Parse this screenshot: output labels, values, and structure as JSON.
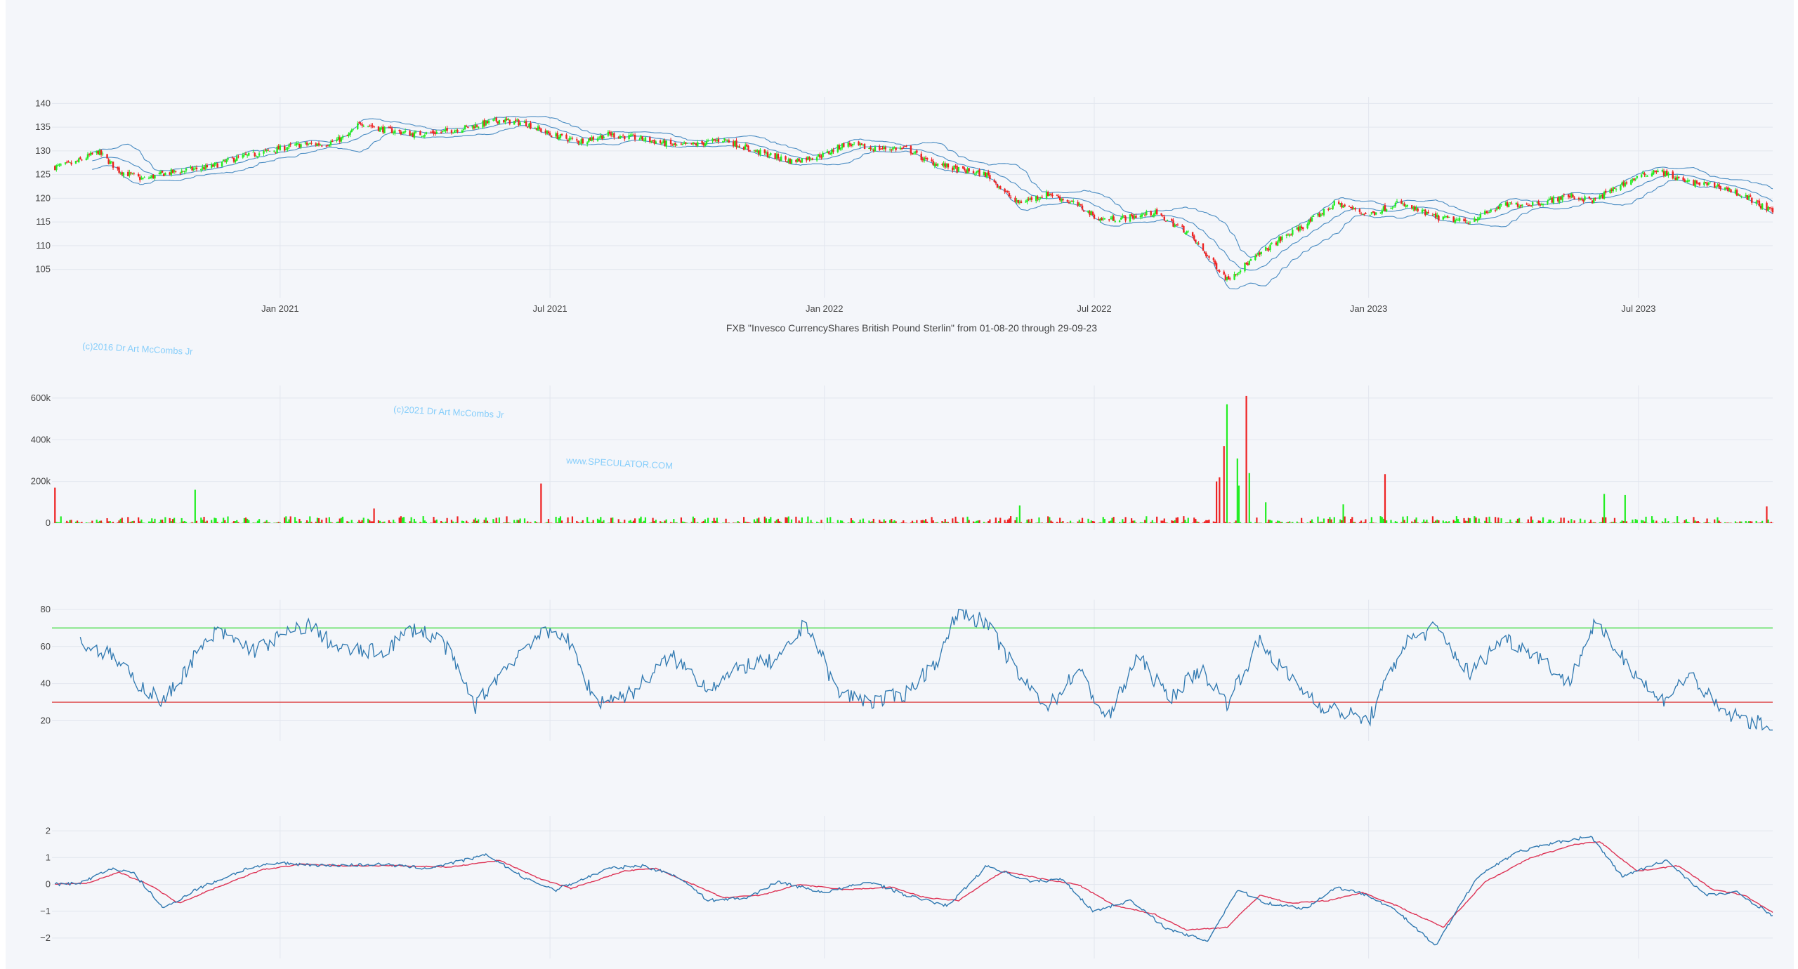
{
  "colors": {
    "page_bg": "#ffffff",
    "plot_bg": "#f4f6fa",
    "grid": "#e2e6ee",
    "tick_text": "#444444",
    "up": "#22ee22",
    "down": "#ee2222",
    "band": "#4a8cc2",
    "rsi_line": "#2f78b0",
    "rsi_upper": "#44dd44",
    "rsi_lower": "#dd4444",
    "osc_fast": "#2f78b0",
    "osc_slow": "#dd3355",
    "watermark": "#87cefa"
  },
  "title": "FXB \"Invesco CurrencyShares British Pound Sterlin\" from 01-08-20 through 29-09-23",
  "watermarks": [
    "(c)2016 Dr Art McCombs Jr",
    "(c)2021 Dr Art McCombs Jr",
    "www.SPECULATOR.COM"
  ],
  "chart_data": [
    {
      "type": "candlestick",
      "name": "price",
      "x_range": [
        "2020-08-01",
        "2023-09-29"
      ],
      "x_ticks": [
        {
          "date": "2021-01-01",
          "label": "Jan 2021"
        },
        {
          "date": "2021-07-01",
          "label": "Jul 2021"
        },
        {
          "date": "2022-01-01",
          "label": "Jan 2022"
        },
        {
          "date": "2022-07-01",
          "label": "Jul 2022"
        },
        {
          "date": "2023-01-01",
          "label": "Jan 2023"
        },
        {
          "date": "2023-07-01",
          "label": "Jul 2023"
        }
      ],
      "y_ticks": [
        105,
        110,
        115,
        120,
        125,
        130,
        135,
        140
      ],
      "ylim": [
        100.5,
        140.5
      ],
      "close_path": [
        [
          "2020-08-01",
          126.5
        ],
        [
          "2020-08-15",
          127.3
        ],
        [
          "2020-09-01",
          129.8
        ],
        [
          "2020-09-15",
          125.8
        ],
        [
          "2020-10-01",
          124.0
        ],
        [
          "2020-10-15",
          125.2
        ],
        [
          "2020-11-01",
          126.0
        ],
        [
          "2020-11-15",
          126.6
        ],
        [
          "2020-12-01",
          128.3
        ],
        [
          "2020-12-15",
          129.3
        ],
        [
          "2021-01-01",
          130.5
        ],
        [
          "2021-01-15",
          131.3
        ],
        [
          "2021-02-01",
          131.5
        ],
        [
          "2021-02-15",
          133.0
        ],
        [
          "2021-02-24",
          136.0
        ],
        [
          "2021-03-10",
          134.6
        ],
        [
          "2021-04-01",
          133.5
        ],
        [
          "2021-04-20",
          134.0
        ],
        [
          "2021-05-10",
          135.2
        ],
        [
          "2021-05-28",
          136.5
        ],
        [
          "2021-06-15",
          135.8
        ],
        [
          "2021-07-01",
          133.5
        ],
        [
          "2021-07-20",
          132.0
        ],
        [
          "2021-08-10",
          133.5
        ],
        [
          "2021-09-01",
          132.5
        ],
        [
          "2021-09-25",
          131.0
        ],
        [
          "2021-10-10",
          131.5
        ],
        [
          "2021-10-25",
          132.5
        ],
        [
          "2021-11-15",
          130.0
        ],
        [
          "2021-12-10",
          127.8
        ],
        [
          "2022-01-01",
          129.2
        ],
        [
          "2022-01-15",
          131.5
        ],
        [
          "2022-02-01",
          130.5
        ],
        [
          "2022-02-25",
          130.5
        ],
        [
          "2022-03-10",
          128.0
        ],
        [
          "2022-04-01",
          126.0
        ],
        [
          "2022-04-20",
          125.0
        ],
        [
          "2022-05-10",
          119.0
        ],
        [
          "2022-06-01",
          121.0
        ],
        [
          "2022-06-20",
          118.5
        ],
        [
          "2022-07-05",
          115.5
        ],
        [
          "2022-07-25",
          116.0
        ],
        [
          "2022-08-10",
          117.0
        ],
        [
          "2022-09-01",
          113.0
        ],
        [
          "2022-09-28",
          103.0
        ],
        [
          "2022-10-15",
          107.0
        ],
        [
          "2022-11-01",
          111.0
        ],
        [
          "2022-11-20",
          114.5
        ],
        [
          "2022-12-10",
          119.0
        ],
        [
          "2023-01-01",
          116.5
        ],
        [
          "2023-01-20",
          119.0
        ],
        [
          "2023-02-15",
          116.0
        ],
        [
          "2023-03-08",
          115.0
        ],
        [
          "2023-04-01",
          118.5
        ],
        [
          "2023-04-25",
          119.0
        ],
        [
          "2023-05-15",
          120.5
        ],
        [
          "2023-06-01",
          119.5
        ],
        [
          "2023-06-20",
          123.0
        ],
        [
          "2023-07-13",
          126.0
        ],
        [
          "2023-08-01",
          123.5
        ],
        [
          "2023-08-25",
          122.5
        ],
        [
          "2023-09-10",
          120.5
        ],
        [
          "2023-09-29",
          117.0
        ]
      ]
    },
    {
      "type": "bar",
      "name": "volume",
      "y_ticks": [
        0,
        200000,
        400000,
        600000
      ],
      "y_tick_labels": [
        "0",
        "200k",
        "400k",
        "600k"
      ],
      "ylim": [
        0,
        640000
      ],
      "spikes": [
        [
          "2020-08-03",
          170000
        ],
        [
          "2020-11-05",
          160000
        ],
        [
          "2020-11-22",
          140000
        ],
        [
          "2021-03-05",
          70000
        ],
        [
          "2021-06-25",
          190000
        ],
        [
          "2021-09-08",
          25000
        ],
        [
          "2022-05-12",
          85000
        ],
        [
          "2022-09-21",
          200000
        ],
        [
          "2022-09-23",
          220000
        ],
        [
          "2022-09-26",
          370000
        ],
        [
          "2022-09-28",
          570000
        ],
        [
          "2022-10-05",
          310000
        ],
        [
          "2022-10-06",
          180000
        ],
        [
          "2022-10-11",
          610000
        ],
        [
          "2022-10-13",
          240000
        ],
        [
          "2022-10-24",
          100000
        ],
        [
          "2022-12-15",
          90000
        ],
        [
          "2023-01-12",
          235000
        ],
        [
          "2023-06-08",
          140000
        ],
        [
          "2023-06-22",
          135000
        ],
        [
          "2023-09-25",
          80000
        ]
      ]
    },
    {
      "type": "line",
      "name": "rsi",
      "y_ticks": [
        20,
        40,
        60,
        80
      ],
      "ylim": [
        13,
        83
      ],
      "upper_level": 70,
      "lower_level": 30,
      "path": [
        [
          "2020-08-20",
          62
        ],
        [
          "2020-09-10",
          55
        ],
        [
          "2020-09-25",
          42
        ],
        [
          "2020-10-15",
          30
        ],
        [
          "2020-11-05",
          55
        ],
        [
          "2020-11-20",
          68
        ],
        [
          "2020-12-15",
          58
        ],
        [
          "2021-01-01",
          65
        ],
        [
          "2021-01-20",
          72
        ],
        [
          "2021-02-10",
          58
        ],
        [
          "2021-03-10",
          57
        ],
        [
          "2021-04-01",
          70
        ],
        [
          "2021-04-20",
          63
        ],
        [
          "2021-05-12",
          28
        ],
        [
          "2021-05-28",
          45
        ],
        [
          "2021-06-20",
          65
        ],
        [
          "2021-07-10",
          68
        ],
        [
          "2021-08-01",
          30
        ],
        [
          "2021-08-25",
          35
        ],
        [
          "2021-09-20",
          55
        ],
        [
          "2021-10-15",
          38
        ],
        [
          "2021-11-10",
          50
        ],
        [
          "2021-12-01",
          52
        ],
        [
          "2021-12-20",
          73
        ],
        [
          "2022-01-10",
          35
        ],
        [
          "2022-02-05",
          30
        ],
        [
          "2022-02-25",
          35
        ],
        [
          "2022-03-20",
          55
        ],
        [
          "2022-04-01",
          80
        ],
        [
          "2022-04-20",
          72
        ],
        [
          "2022-05-15",
          40
        ],
        [
          "2022-06-01",
          28
        ],
        [
          "2022-06-20",
          48
        ],
        [
          "2022-07-10",
          20
        ],
        [
          "2022-07-30",
          55
        ],
        [
          "2022-08-20",
          32
        ],
        [
          "2022-09-10",
          48
        ],
        [
          "2022-09-28",
          30
        ],
        [
          "2022-10-20",
          63
        ],
        [
          "2022-11-10",
          42
        ],
        [
          "2022-12-01",
          28
        ],
        [
          "2023-01-01",
          20
        ],
        [
          "2023-01-25",
          62
        ],
        [
          "2023-02-15",
          70
        ],
        [
          "2023-03-10",
          45
        ],
        [
          "2023-04-01",
          65
        ],
        [
          "2023-04-25",
          55
        ],
        [
          "2023-05-15",
          40
        ],
        [
          "2023-06-01",
          72
        ],
        [
          "2023-06-20",
          55
        ],
        [
          "2023-07-15",
          30
        ],
        [
          "2023-08-05",
          45
        ],
        [
          "2023-08-25",
          25
        ],
        [
          "2023-09-29",
          16
        ]
      ]
    },
    {
      "type": "line",
      "name": "oscillator",
      "y_ticks": [
        -2,
        -1,
        0,
        1,
        2
      ],
      "y_tick_labels": [
        "−2",
        "−1",
        "0",
        "1",
        "2"
      ],
      "ylim": [
        -2.5,
        2.4
      ],
      "fast": [
        [
          "2020-08-01",
          0.0
        ],
        [
          "2020-08-20",
          0.05
        ],
        [
          "2020-09-10",
          0.6
        ],
        [
          "2020-09-25",
          0.4
        ],
        [
          "2020-10-15",
          -0.9
        ],
        [
          "2020-11-05",
          -0.2
        ],
        [
          "2020-12-10",
          0.6
        ],
        [
          "2021-01-01",
          0.8
        ],
        [
          "2021-02-01",
          0.7
        ],
        [
          "2021-03-10",
          0.75
        ],
        [
          "2021-04-10",
          0.6
        ],
        [
          "2021-05-20",
          1.1
        ],
        [
          "2021-06-15",
          0.2
        ],
        [
          "2021-07-05",
          -0.2
        ],
        [
          "2021-08-10",
          0.6
        ],
        [
          "2021-09-01",
          0.7
        ],
        [
          "2021-09-25",
          0.3
        ],
        [
          "2021-10-15",
          -0.6
        ],
        [
          "2021-11-10",
          -0.5
        ],
        [
          "2021-12-01",
          0.1
        ],
        [
          "2022-01-01",
          -0.3
        ],
        [
          "2022-02-01",
          0.1
        ],
        [
          "2022-02-25",
          -0.4
        ],
        [
          "2022-03-25",
          -0.8
        ],
        [
          "2022-04-20",
          0.7
        ],
        [
          "2022-05-20",
          0.1
        ],
        [
          "2022-06-10",
          0.2
        ],
        [
          "2022-06-30",
          -1.0
        ],
        [
          "2022-07-25",
          -0.6
        ],
        [
          "2022-08-20",
          -1.7
        ],
        [
          "2022-09-15",
          -2.1
        ],
        [
          "2022-10-05",
          -0.2
        ],
        [
          "2022-10-25",
          -0.7
        ],
        [
          "2022-11-20",
          -0.9
        ],
        [
          "2022-12-10",
          -0.1
        ],
        [
          "2023-01-01",
          -0.4
        ],
        [
          "2023-01-20",
          -1.0
        ],
        [
          "2023-02-15",
          -2.3
        ],
        [
          "2023-03-15",
          0.3
        ],
        [
          "2023-04-10",
          1.2
        ],
        [
          "2023-05-10",
          1.6
        ],
        [
          "2023-05-30",
          1.8
        ],
        [
          "2023-06-20",
          0.3
        ],
        [
          "2023-07-20",
          0.9
        ],
        [
          "2023-08-15",
          -0.4
        ],
        [
          "2023-09-05",
          -0.3
        ],
        [
          "2023-09-29",
          -1.15
        ]
      ],
      "slow": [
        [
          "2020-08-01",
          0.0
        ],
        [
          "2020-08-25",
          0.05
        ],
        [
          "2020-09-15",
          0.45
        ],
        [
          "2020-10-05",
          0.0
        ],
        [
          "2020-10-25",
          -0.7
        ],
        [
          "2020-11-20",
          -0.1
        ],
        [
          "2020-12-20",
          0.55
        ],
        [
          "2021-01-15",
          0.75
        ],
        [
          "2021-02-15",
          0.7
        ],
        [
          "2021-03-20",
          0.7
        ],
        [
          "2021-04-25",
          0.65
        ],
        [
          "2021-05-28",
          0.9
        ],
        [
          "2021-06-25",
          0.2
        ],
        [
          "2021-07-15",
          -0.15
        ],
        [
          "2021-08-20",
          0.5
        ],
        [
          "2021-09-10",
          0.6
        ],
        [
          "2021-10-05",
          0.0
        ],
        [
          "2021-10-25",
          -0.5
        ],
        [
          "2021-11-20",
          -0.4
        ],
        [
          "2021-12-15",
          0.0
        ],
        [
          "2022-01-15",
          -0.2
        ],
        [
          "2022-02-15",
          -0.1
        ],
        [
          "2022-03-10",
          -0.5
        ],
        [
          "2022-04-01",
          -0.6
        ],
        [
          "2022-05-01",
          0.5
        ],
        [
          "2022-06-01",
          0.15
        ],
        [
          "2022-06-20",
          0.0
        ],
        [
          "2022-07-15",
          -0.8
        ],
        [
          "2022-08-10",
          -1.1
        ],
        [
          "2022-09-01",
          -1.7
        ],
        [
          "2022-09-28",
          -1.6
        ],
        [
          "2022-10-20",
          -0.4
        ],
        [
          "2022-11-10",
          -0.7
        ],
        [
          "2022-12-05",
          -0.6
        ],
        [
          "2022-12-28",
          -0.3
        ],
        [
          "2023-01-20",
          -0.8
        ],
        [
          "2023-02-20",
          -1.6
        ],
        [
          "2023-03-20",
          0.1
        ],
        [
          "2023-04-20",
          1.0
        ],
        [
          "2023-05-20",
          1.5
        ],
        [
          "2023-06-05",
          1.6
        ],
        [
          "2023-06-30",
          0.5
        ],
        [
          "2023-07-28",
          0.7
        ],
        [
          "2023-08-20",
          -0.2
        ],
        [
          "2023-09-10",
          -0.4
        ],
        [
          "2023-09-29",
          -1.05
        ]
      ]
    }
  ]
}
